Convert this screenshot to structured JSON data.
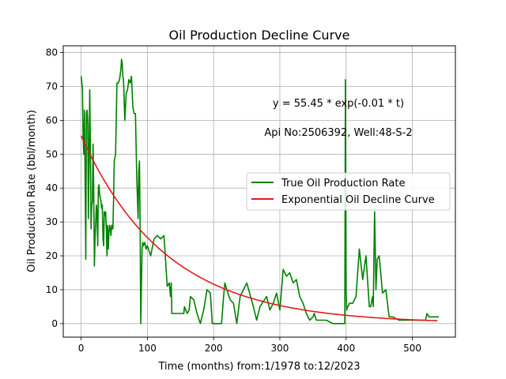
{
  "chart_data": {
    "type": "line",
    "title": "Oil Production Decline Curve",
    "xlabel": "Time (months) from:1/1978 to:12/2023",
    "ylabel": "Oil Production Rate (bbl/month)",
    "xlim": [
      -27,
      565
    ],
    "ylim": [
      -4,
      82
    ],
    "xticks": [
      0,
      100,
      200,
      300,
      400,
      500
    ],
    "yticks": [
      0,
      10,
      20,
      30,
      40,
      50,
      60,
      70,
      80
    ],
    "grid": true,
    "legend": "center-right",
    "annotations": {
      "equation": "y = 55.45 * exp(-0.01 * t)",
      "well": "Api No:2506392, Well:48-S-2"
    },
    "series": [
      {
        "name": "True Oil Production Rate",
        "color": "#008000",
        "x": [
          0,
          1,
          2,
          3,
          4,
          5,
          6,
          7,
          8,
          9,
          10,
          11,
          12,
          13,
          14,
          15,
          16,
          17,
          18,
          19,
          20,
          21,
          22,
          23,
          24,
          25,
          26,
          27,
          28,
          29,
          30,
          31,
          32,
          33,
          34,
          35,
          36,
          37,
          38,
          39,
          40,
          41,
          42,
          43,
          44,
          45,
          46,
          47,
          48,
          49,
          50,
          52,
          54,
          56,
          58,
          60,
          61,
          62,
          63,
          64,
          66,
          68,
          70,
          72,
          74,
          76,
          78,
          80,
          82,
          84,
          86,
          87,
          88,
          89,
          90,
          92,
          93,
          94,
          96,
          98,
          100,
          105,
          110,
          115,
          120,
          125,
          130,
          133,
          134,
          135,
          136,
          137,
          140,
          150,
          155,
          156,
          160,
          163,
          165,
          170,
          175,
          180,
          185,
          190,
          195,
          198,
          200,
          205,
          210,
          212,
          215,
          217,
          220,
          225,
          230,
          235,
          240,
          245,
          250,
          260,
          265,
          270,
          280,
          285,
          290,
          295,
          300,
          305,
          310,
          315,
          320,
          325,
          330,
          335,
          340,
          345,
          350,
          352,
          355,
          360,
          370,
          380,
          390,
          396,
          398,
          399,
          400,
          401,
          402,
          403,
          405,
          410,
          415,
          420,
          425,
          430,
          435,
          437,
          440,
          441,
          443,
          445,
          447,
          450,
          455,
          460,
          465,
          470,
          480,
          490,
          500,
          510,
          520,
          522,
          525,
          530,
          535,
          540
        ],
        "y": [
          73,
          71,
          69,
          55,
          50,
          63,
          45,
          19,
          62,
          63,
          59,
          31,
          50,
          69,
          50,
          28,
          35,
          36,
          53,
          40,
          17,
          25,
          30,
          35,
          33,
          23,
          40,
          41,
          38,
          37,
          36,
          34,
          35,
          25,
          23,
          33,
          32,
          33,
          28,
          20,
          29,
          22,
          27,
          29,
          28,
          26,
          29,
          28,
          28,
          37,
          48,
          50,
          71,
          71,
          72,
          75,
          78,
          77,
          73,
          72,
          60,
          68,
          69,
          72,
          71,
          73,
          64,
          62,
          62,
          43,
          31,
          45,
          48,
          30,
          0,
          22,
          24,
          23,
          24,
          22,
          23,
          20,
          25,
          26,
          25,
          26,
          11,
          12,
          10,
          8,
          12,
          3,
          3,
          3,
          3,
          5,
          3,
          4,
          8,
          7,
          3,
          0,
          4,
          10,
          9,
          0,
          0,
          0,
          0,
          0,
          8,
          12,
          10,
          7,
          6,
          0,
          8,
          10,
          12,
          5,
          1,
          5,
          8,
          4,
          6,
          9,
          4,
          16,
          14,
          15,
          12,
          13,
          8,
          6,
          3,
          1,
          2,
          3,
          1,
          1,
          1,
          0,
          0,
          0,
          0,
          72,
          10,
          4,
          5,
          5,
          6,
          6,
          8,
          22,
          13,
          20,
          5,
          5,
          8,
          5,
          33,
          10,
          19,
          20,
          9,
          10,
          2,
          2,
          1,
          1,
          1,
          1,
          1,
          3,
          2,
          2,
          2,
          2
        ]
      },
      {
        "name": "Exponential Oil Decline Curve",
        "color": "#e41a1c",
        "fit": {
          "a": 55.45,
          "b": 0.0078
        },
        "x_range": [
          0,
          538
        ]
      }
    ]
  }
}
